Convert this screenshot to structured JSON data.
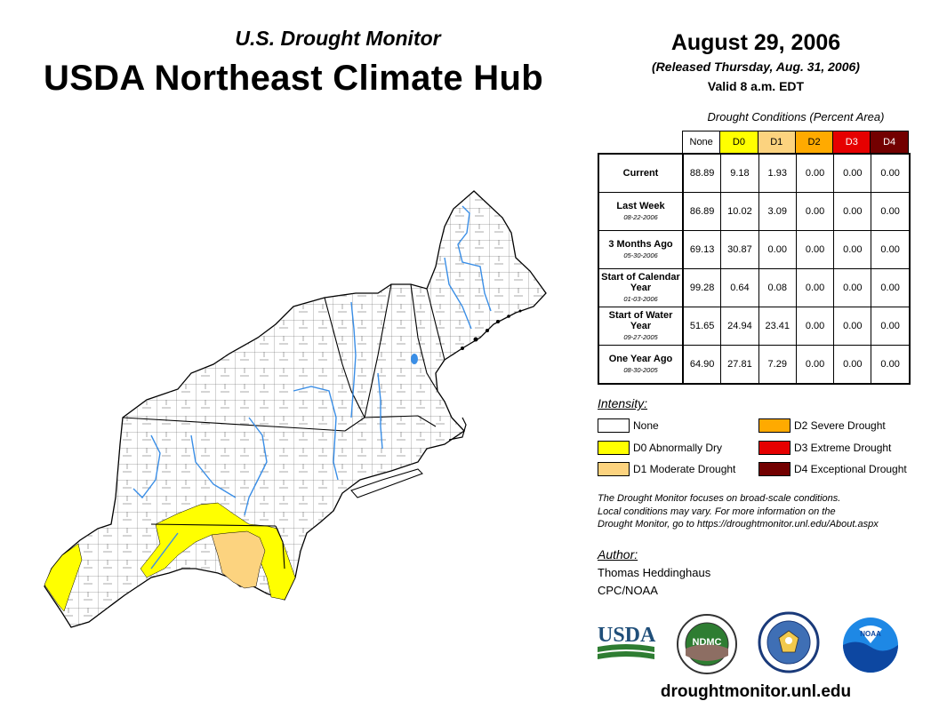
{
  "header": {
    "subtitle": "U.S. Drought Monitor",
    "title": "USDA Northeast Climate Hub",
    "date": "August 29, 2006",
    "released": "(Released Thursday, Aug. 31, 2006)",
    "valid": "Valid 8 a.m. EDT"
  },
  "conditions": {
    "title": "Drought Conditions (Percent Area)",
    "columns": [
      "None",
      "D0",
      "D1",
      "D2",
      "D3",
      "D4"
    ],
    "rows": [
      {
        "label": "Current",
        "date": "",
        "values": [
          "88.89",
          "9.18",
          "1.93",
          "0.00",
          "0.00",
          "0.00"
        ]
      },
      {
        "label": "Last Week",
        "date": "08-22-2006",
        "values": [
          "86.89",
          "10.02",
          "3.09",
          "0.00",
          "0.00",
          "0.00"
        ]
      },
      {
        "label": "3 Months Ago",
        "date": "05-30-2006",
        "values": [
          "69.13",
          "30.87",
          "0.00",
          "0.00",
          "0.00",
          "0.00"
        ]
      },
      {
        "label": "Start of Calendar Year",
        "date": "01-03-2006",
        "values": [
          "99.28",
          "0.64",
          "0.08",
          "0.00",
          "0.00",
          "0.00"
        ]
      },
      {
        "label": "Start of Water Year",
        "date": "09-27-2005",
        "values": [
          "51.65",
          "24.94",
          "23.41",
          "0.00",
          "0.00",
          "0.00"
        ]
      },
      {
        "label": "One Year Ago",
        "date": "08-30-2005",
        "values": [
          "64.90",
          "27.81",
          "7.29",
          "0.00",
          "0.00",
          "0.00"
        ]
      }
    ]
  },
  "colors": {
    "none": "#ffffff",
    "d0": "#ffff00",
    "d1": "#fcd37f",
    "d2": "#ffaa00",
    "d3": "#e60000",
    "d4": "#730000",
    "water": "#3a8ee6"
  },
  "legend": {
    "title": "Intensity:",
    "items": [
      {
        "label": "None"
      },
      {
        "label": "D0 Abnormally Dry"
      },
      {
        "label": "D1 Moderate Drought"
      },
      {
        "label": "D2 Severe Drought"
      },
      {
        "label": "D3 Extreme Drought"
      },
      {
        "label": "D4 Exceptional Drought"
      }
    ]
  },
  "note": {
    "line1": "The Drought Monitor focuses on broad-scale conditions.",
    "line2": "Local conditions may vary. For more information on the",
    "line3": "Drought Monitor, go to https://droughtmonitor.unl.edu/About.aspx"
  },
  "author": {
    "title": "Author:",
    "name": "Thomas Heddinghaus",
    "org": "CPC/NOAA"
  },
  "logos": {
    "usda": "USDA",
    "ndmc": "NDMC"
  },
  "footer": {
    "website": "droughtmonitor.unl.edu"
  }
}
